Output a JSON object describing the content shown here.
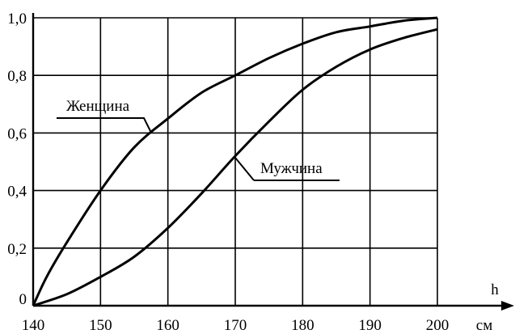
{
  "chart_data": {
    "type": "line",
    "x_unit": "см",
    "x_axis_name": "h",
    "xlim": [
      140,
      200
    ],
    "ylim": [
      0,
      1.0
    ],
    "x_ticks": [
      {
        "value": 140,
        "label": "140"
      },
      {
        "value": 150,
        "label": "150"
      },
      {
        "value": 160,
        "label": "160"
      },
      {
        "value": 170,
        "label": "170"
      },
      {
        "value": 180,
        "label": "180"
      },
      {
        "value": 190,
        "label": "190"
      },
      {
        "value": 200,
        "label": "200"
      }
    ],
    "y_ticks": [
      {
        "value": 0,
        "label": "0"
      },
      {
        "value": 0.2,
        "label": "0,2"
      },
      {
        "value": 0.4,
        "label": "0,4"
      },
      {
        "value": 0.6,
        "label": "0,6"
      },
      {
        "value": 0.8,
        "label": "0,8"
      },
      {
        "value": 1.0,
        "label": "1,0"
      }
    ],
    "grid": true,
    "series": [
      {
        "name": "Женщина",
        "x": [
          140,
          142,
          145,
          150,
          155,
          160,
          165,
          170,
          175,
          180,
          185,
          190,
          195,
          200
        ],
        "y": [
          0.0,
          0.1,
          0.22,
          0.4,
          0.55,
          0.65,
          0.74,
          0.8,
          0.86,
          0.91,
          0.95,
          0.97,
          0.99,
          1.0
        ]
      },
      {
        "name": "Мужчина",
        "x": [
          140,
          145,
          150,
          155,
          160,
          165,
          170,
          175,
          180,
          185,
          190,
          195,
          200
        ],
        "y": [
          0.0,
          0.04,
          0.1,
          0.17,
          0.27,
          0.39,
          0.52,
          0.64,
          0.75,
          0.83,
          0.89,
          0.93,
          0.96
        ]
      }
    ]
  }
}
